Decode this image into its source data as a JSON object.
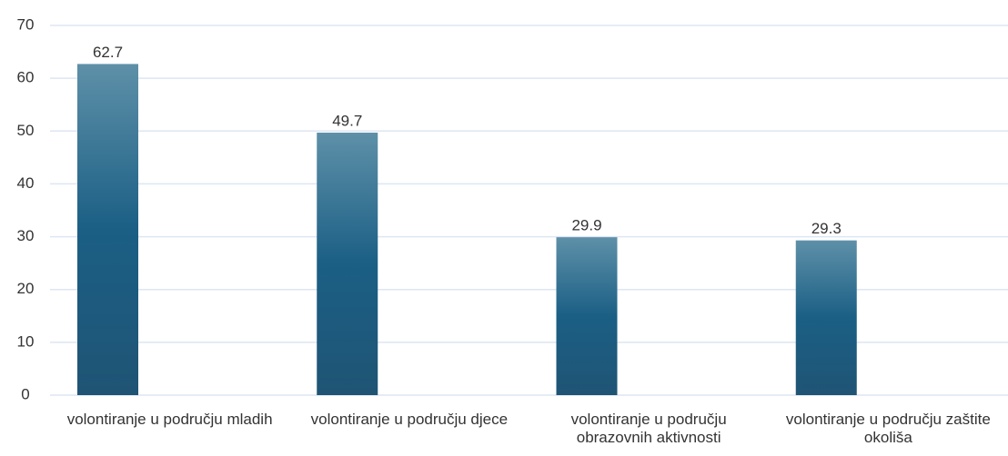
{
  "chart_data": {
    "type": "bar",
    "categories": [
      "volontiranje u području mladih",
      "volontiranje u području djece",
      "volontiranje u području obrazovnih aktivnosti",
      "volontiranje u području zaštite okoliša"
    ],
    "values": [
      62.7,
      49.7,
      29.9,
      29.3
    ],
    "color": "#1b5f85",
    "ylim": [
      0,
      70
    ],
    "yticks": [
      0,
      10,
      20,
      30,
      40,
      50,
      60,
      70
    ],
    "grid": true
  }
}
